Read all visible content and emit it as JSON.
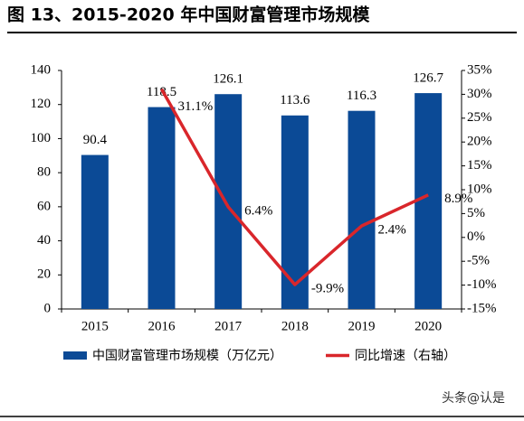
{
  "chart_data": {
    "type": "bar",
    "title": "图 13、2015-2020 年中国财富管理市场规模",
    "categories": [
      "2015",
      "2016",
      "2017",
      "2018",
      "2019",
      "2020"
    ],
    "series": [
      {
        "name": "中国财富管理市场规模（万亿元）",
        "color": "#0b4a96",
        "type": "bar",
        "values": [
          90.4,
          118.5,
          126.1,
          113.6,
          116.3,
          126.7
        ]
      },
      {
        "name": "同比增速（右轴）",
        "color": "#d9262b",
        "type": "line",
        "axis": "y2",
        "values": [
          null,
          31.1,
          6.4,
          -9.9,
          2.4,
          8.9
        ],
        "value_labels": [
          null,
          "31.1%",
          "6.4%",
          "-9.9%",
          "2.4%",
          "8.9%"
        ]
      }
    ],
    "ylim": [
      0,
      140
    ],
    "yticks": [
      0,
      20,
      40,
      60,
      80,
      100,
      120,
      140
    ],
    "y2lim": [
      -15,
      35
    ],
    "y2ticks": [
      {
        "value": -15,
        "label": "-15%"
      },
      {
        "value": -10,
        "label": "-10%"
      },
      {
        "value": -5,
        "label": "-5%"
      },
      {
        "value": 0,
        "label": "0%"
      },
      {
        "value": 5,
        "label": "5%"
      },
      {
        "value": 10,
        "label": "10%"
      },
      {
        "value": 15,
        "label": "15%"
      },
      {
        "value": 20,
        "label": "20%"
      },
      {
        "value": 25,
        "label": "25%"
      },
      {
        "value": 30,
        "label": "30%"
      },
      {
        "value": 35,
        "label": "35%"
      }
    ],
    "legend": "bottom",
    "watermark": "头条@认是"
  }
}
